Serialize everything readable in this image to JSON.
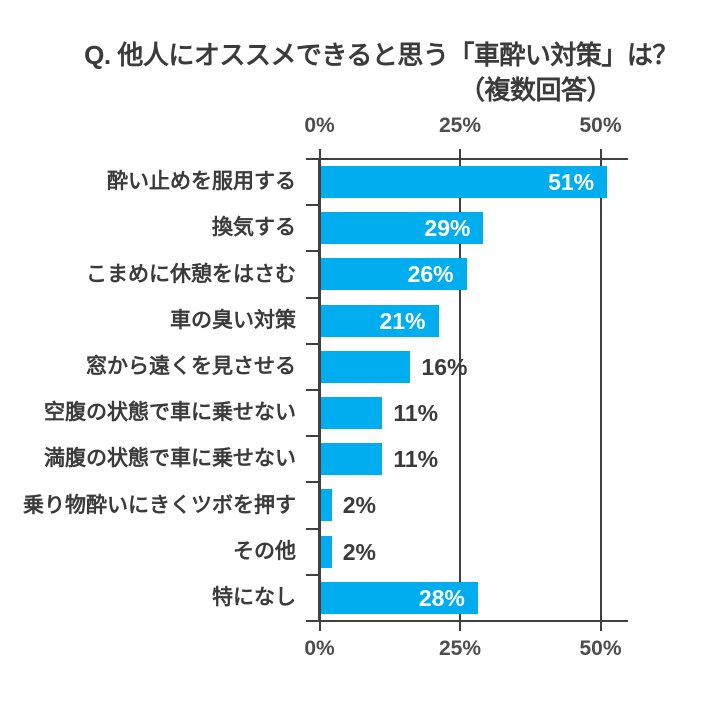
{
  "title": {
    "line1": "Q. 他人にオススメできると思う「車酔い対策」は？",
    "line2": "（複数回答）"
  },
  "colors": {
    "bar": "#00AEEF",
    "axis": "#404040",
    "text_dark": "#3b3b3b",
    "tick_label": "#4d4d4d",
    "value_inside": "#ffffff",
    "background": "#ffffff"
  },
  "chart_data": {
    "type": "bar",
    "orientation": "horizontal",
    "title": "Q. 他人にオススメできると思う「車酔い対策」は？（複数回答）",
    "categories": [
      "酔い止めを服用する",
      "換気する",
      "こまめに休憩をはさむ",
      "車の臭い対策",
      "窓から遠くを見させる",
      "空腹の状態で車に乗せない",
      "満腹の状態で車に乗せない",
      "乗り物酔いにきくツボを押す",
      "その他",
      "特になし"
    ],
    "values": [
      51,
      29,
      26,
      21,
      16,
      11,
      11,
      2,
      2,
      28
    ],
    "value_labels": [
      "51%",
      "29%",
      "26%",
      "21%",
      "16%",
      "11%",
      "11%",
      "2%",
      "2%",
      "28%"
    ],
    "label_inside": [
      true,
      true,
      true,
      true,
      false,
      false,
      false,
      false,
      false,
      true
    ],
    "unit": "%",
    "xlabel": "",
    "ylabel": "",
    "xlim": [
      0,
      55
    ],
    "x_ticks": [
      "0%",
      "25%",
      "50%"
    ],
    "x_tick_values": [
      0,
      25,
      50
    ],
    "x_axis_shown": "top and bottom",
    "grid": "vertical gridlines at 25% and 50%",
    "legend": "none"
  }
}
